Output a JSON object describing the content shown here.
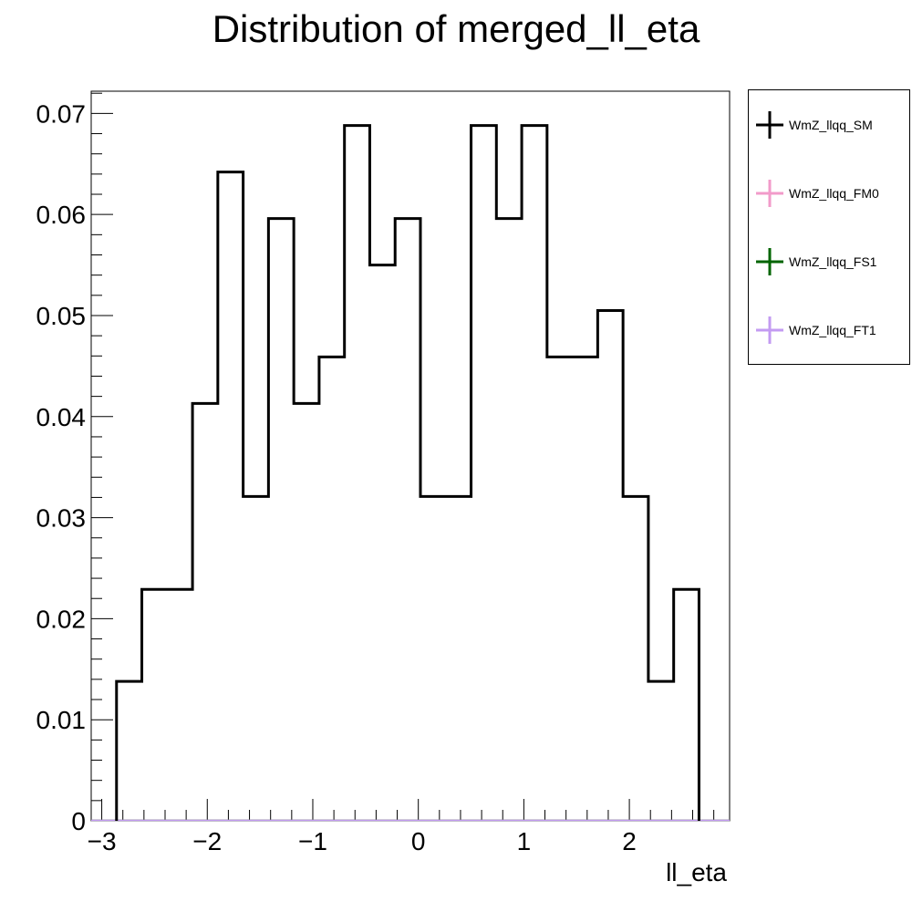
{
  "chart_data": {
    "type": "histogram",
    "title": "Distribution of merged_ll_eta",
    "xlabel": "ll_eta",
    "ylabel": "",
    "xlim": [
      -3.1,
      2.95
    ],
    "ylim": [
      0,
      0.0722
    ],
    "x_ticks": [
      -3,
      -2,
      -1,
      0,
      1,
      2
    ],
    "x_tick_labels": [
      "−3",
      "−2",
      "−1",
      "0",
      "1",
      "2"
    ],
    "y_ticks": [
      0,
      0.01,
      0.02,
      0.03,
      0.04,
      0.05,
      0.06,
      0.07
    ],
    "y_tick_labels": [
      "0",
      "0.01",
      "0.02",
      "0.03",
      "0.04",
      "0.05",
      "0.06",
      "0.07"
    ],
    "bin_edges": [
      -2.86,
      -2.62,
      -2.14,
      -1.9,
      -1.66,
      -1.42,
      -1.18,
      -0.94,
      -0.7,
      -0.46,
      -0.22,
      0.02,
      0.5,
      0.74,
      0.98,
      1.22,
      1.7,
      1.94,
      2.18,
      2.42,
      2.66
    ],
    "series": [
      {
        "name": "WmZ_llqq_SM",
        "color": "#000000",
        "values": [
          0.0138,
          0.0229,
          0.0413,
          0.0642,
          0.0321,
          0.0596,
          0.0413,
          0.0459,
          0.0688,
          0.055,
          0.0596,
          0.0321,
          0.0688,
          0.0596,
          0.0688,
          0.0459,
          0.0505,
          0.0321,
          0.0138,
          0.0229
        ]
      },
      {
        "name": "WmZ_llqq_FM0",
        "color": "#f29bca",
        "values": []
      },
      {
        "name": "WmZ_llqq_FS1",
        "color": "#006400",
        "values": []
      },
      {
        "name": "WmZ_llqq_FT1",
        "color": "#c39bf2",
        "values": []
      }
    ],
    "legend_position": "right",
    "grid": false
  }
}
